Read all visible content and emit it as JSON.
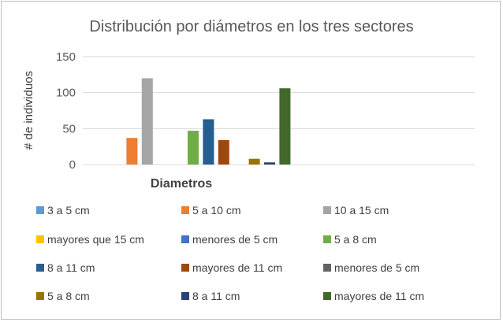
{
  "chart_data": {
    "type": "bar",
    "title": "Distribución por diámetros en los tres sectores",
    "xlabel": "Diametros",
    "ylabel": "# de individuos",
    "ylim": [
      0,
      150
    ],
    "yticks": [
      0,
      50,
      100,
      150
    ],
    "categories": [
      "Diametros"
    ],
    "grid": true,
    "legend_position": "bottom",
    "series": [
      {
        "name": "3 a 5 cm",
        "values": [
          0
        ],
        "color": "#5b9bd5"
      },
      {
        "name": "5 a 10 cm",
        "values": [
          37
        ],
        "color": "#ed7d31"
      },
      {
        "name": "10 a 15 cm",
        "values": [
          120
        ],
        "color": "#a5a5a5"
      },
      {
        "name": "mayores que 15 cm",
        "values": [
          0
        ],
        "color": "#ffc000"
      },
      {
        "name": "menores de 5 cm",
        "values": [
          0
        ],
        "color": "#4472c4"
      },
      {
        "name": "5 a 8 cm",
        "values": [
          47
        ],
        "color": "#70ad47"
      },
      {
        "name": "8 a 11 cm",
        "values": [
          63
        ],
        "color": "#255e91"
      },
      {
        "name": "mayores de 11 cm",
        "values": [
          34
        ],
        "color": "#9e480e"
      },
      {
        "name": "menores de 5 cm",
        "values": [
          0
        ],
        "color": "#636363"
      },
      {
        "name": "5 a 8 cm",
        "values": [
          8
        ],
        "color": "#997300"
      },
      {
        "name": "8 a 11 cm",
        "values": [
          3
        ],
        "color": "#264478"
      },
      {
        "name": "mayores de 11 cm",
        "values": [
          106
        ],
        "color": "#43682b"
      }
    ]
  }
}
